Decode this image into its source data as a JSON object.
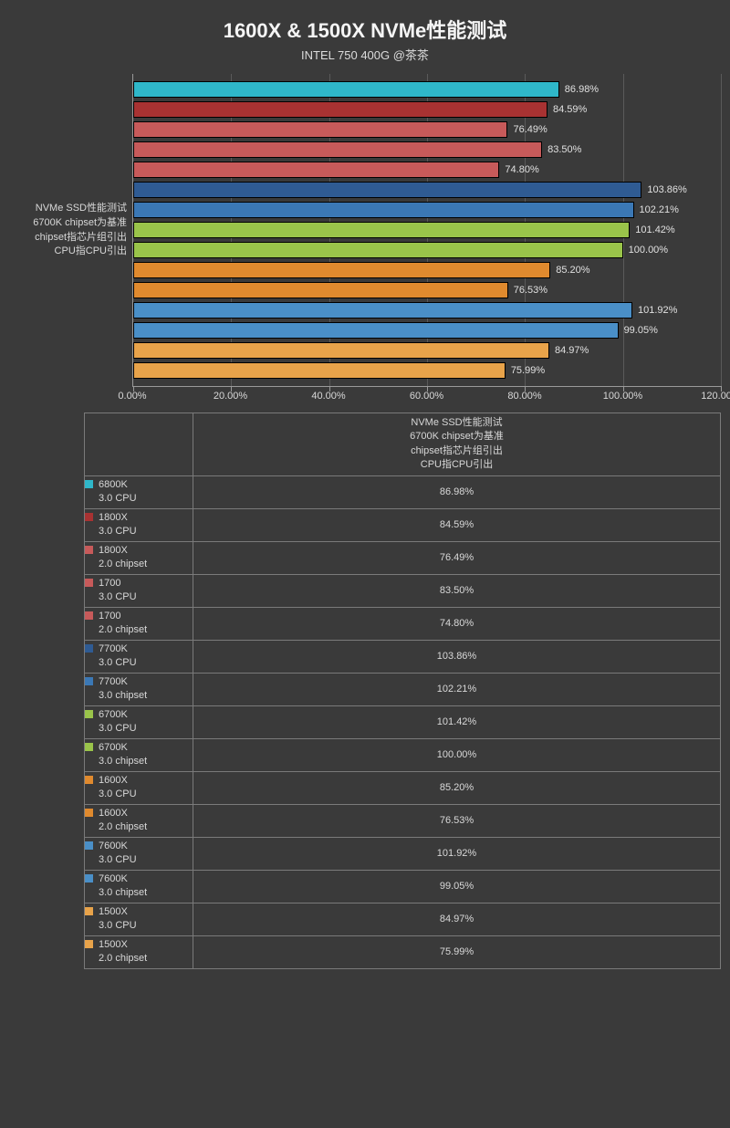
{
  "title": "1600X & 1500X NVMe性能测试",
  "subtitle": "INTEL 750 400G @茶茶",
  "chart": {
    "type": "bar-horizontal",
    "x_min": 0.0,
    "x_max": 120.0,
    "x_tick_step": 20.0,
    "x_ticks": [
      "0.00%",
      "20.00%",
      "40.00%",
      "60.00%",
      "80.00%",
      "100.00%",
      "120.00%"
    ],
    "grid_color": "#5a5a5a",
    "axis_color": "#9a9a9a",
    "background_color": "#3a3a3a",
    "bar_border_color": "#000000",
    "label_fontsize": 11,
    "y_axis_labels": [
      "NVMe SSD性能测试",
      "6700K chipset为基准",
      "chipset指芯片组引出",
      "CPU指CPU引出"
    ],
    "series": [
      {
        "cpu": "6800K",
        "mode": "3.0 CPU",
        "value": 86.98,
        "label": "86.98%",
        "color": "#2fb7c9"
      },
      {
        "cpu": "1800X",
        "mode": "3.0 CPU",
        "value": 84.59,
        "label": "84.59%",
        "color": "#a83232"
      },
      {
        "cpu": "1800X",
        "mode": "2.0 chipset",
        "value": 76.49,
        "label": "76.49%",
        "color": "#c75a5a"
      },
      {
        "cpu": "1700",
        "mode": "3.0 CPU",
        "value": 83.5,
        "label": "83.50%",
        "color": "#c75a5a"
      },
      {
        "cpu": "1700",
        "mode": "2.0 chipset",
        "value": 74.8,
        "label": "74.80%",
        "color": "#c75a5a"
      },
      {
        "cpu": "7700K",
        "mode": "3.0 CPU",
        "value": 103.86,
        "label": "103.86%",
        "color": "#2f5b93"
      },
      {
        "cpu": "7700K",
        "mode": "3.0 chipset",
        "value": 102.21,
        "label": "102.21%",
        "color": "#3b78b5"
      },
      {
        "cpu": "6700K",
        "mode": "3.0 CPU",
        "value": 101.42,
        "label": "101.42%",
        "color": "#9ac44a"
      },
      {
        "cpu": "6700K",
        "mode": "3.0 chipset",
        "value": 100.0,
        "label": "100.00%",
        "color": "#9ac44a"
      },
      {
        "cpu": "1600X",
        "mode": "3.0 CPU",
        "value": 85.2,
        "label": "85.20%",
        "color": "#e08a2e"
      },
      {
        "cpu": "1600X",
        "mode": "2.0 chipset",
        "value": 76.53,
        "label": "76.53%",
        "color": "#e08a2e"
      },
      {
        "cpu": "7600K",
        "mode": "3.0 CPU",
        "value": 101.92,
        "label": "101.92%",
        "color": "#4a8fc7"
      },
      {
        "cpu": "7600K",
        "mode": "3.0 chipset",
        "value": 99.05,
        "label": "99.05%",
        "color": "#4a8fc7"
      },
      {
        "cpu": "1500X",
        "mode": "3.0 CPU",
        "value": 84.97,
        "label": "84.97%",
        "color": "#e8a34a"
      },
      {
        "cpu": "1500X",
        "mode": "2.0 chipset",
        "value": 75.99,
        "label": "75.99%",
        "color": "#e8a34a"
      }
    ]
  },
  "table": {
    "header_lines": [
      "NVMe SSD性能测试",
      "6700K chipset为基准",
      "chipset指芯片组引出",
      "CPU指CPU引出"
    ]
  }
}
